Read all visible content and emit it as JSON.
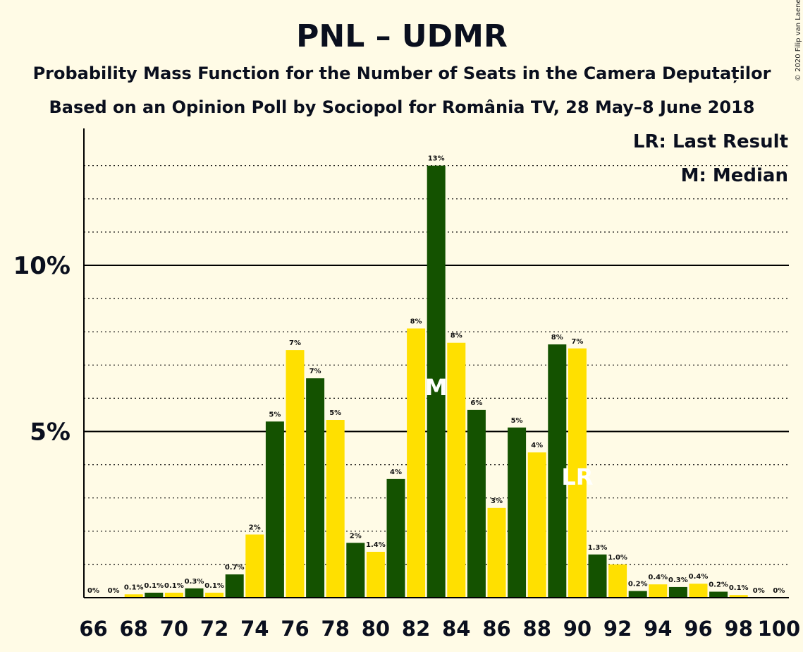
{
  "chart_data": {
    "type": "bar",
    "title": "PNL – UDMR",
    "subtitle": "Probability Mass Function for the Number of Seats in the Camera Deputaților",
    "subtitle2": "Based on an Opinion Poll by Sociopol for România TV, 28 May–8 June 2018",
    "copyright": "© 2020 Filip van Laenen",
    "legend": {
      "lr": "LR: Last Result",
      "m": "M: Median",
      "placement": "top-right"
    },
    "x": [
      66,
      67,
      68,
      69,
      70,
      71,
      72,
      73,
      74,
      75,
      76,
      77,
      78,
      79,
      80,
      81,
      82,
      83,
      84,
      85,
      86,
      87,
      88,
      89,
      90,
      91,
      92,
      93,
      94,
      95,
      96,
      97,
      98,
      99,
      100
    ],
    "values": [
      0,
      0,
      0.1,
      0.15,
      0.15,
      0.28,
      0.15,
      0.7,
      1.9,
      5.3,
      7.45,
      6.6,
      5.35,
      1.65,
      1.38,
      3.57,
      8.1,
      13.0,
      7.67,
      5.65,
      2.7,
      5.12,
      4.37,
      7.62,
      7.5,
      1.3,
      1.0,
      0.2,
      0.4,
      0.32,
      0.42,
      0.18,
      0.08,
      0,
      0
    ],
    "labels": [
      "0%",
      "0%",
      "0.1%",
      "0.1%",
      "0.1%",
      "0.3%",
      "0.1%",
      "0.7%",
      "2%",
      "5%",
      "7%",
      "7%",
      "5%",
      "2%",
      "1.4%",
      "4%",
      "8%",
      "13%",
      "8%",
      "6%",
      "3%",
      "5%",
      "4%",
      "8%",
      "7%",
      "1.3%",
      "1.0%",
      "0.2%",
      "0.4%",
      "0.3%",
      "0.4%",
      "0.2%",
      "0.1%",
      "0%",
      "0%"
    ],
    "x_tick_labels": [
      "66",
      "68",
      "70",
      "72",
      "74",
      "76",
      "78",
      "80",
      "82",
      "84",
      "86",
      "88",
      "90",
      "92",
      "94",
      "96",
      "98",
      "100"
    ],
    "y_tick_labels": [
      {
        "value": 5,
        "label": "5%"
      },
      {
        "value": 10,
        "label": "10%"
      }
    ],
    "ylim": [
      0,
      14
    ],
    "grid": {
      "major": [
        5,
        10
      ],
      "minor_step": 1
    },
    "median_seat": 83,
    "median_mark": "M",
    "last_result_seat": 90,
    "last_result_mark": "LR",
    "colors": {
      "dark": "#145200",
      "light": "#ffe000",
      "background": "#fffbe6"
    }
  }
}
